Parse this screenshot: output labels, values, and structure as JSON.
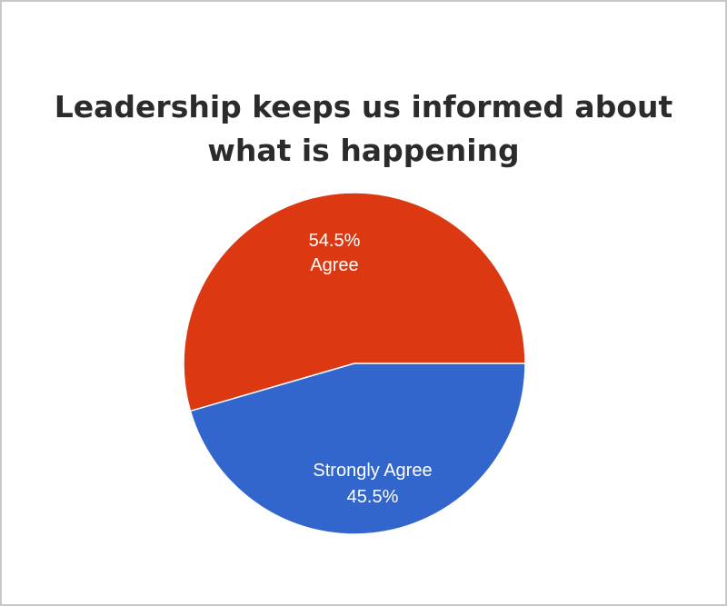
{
  "chart_data": {
    "type": "pie",
    "title": "Leadership keeps us informed about what is happening",
    "title_lines": [
      "Leadership keeps us informed about",
      "what is happening"
    ],
    "slices": [
      {
        "name": "Agree",
        "value": 54.5,
        "percent_label": "54.5%",
        "color": "#dc3912"
      },
      {
        "name": "Strongly Agree",
        "value": 45.5,
        "percent_label": "45.5%",
        "color": "#3366cc"
      }
    ],
    "legend": "none",
    "label_position": "inside"
  }
}
